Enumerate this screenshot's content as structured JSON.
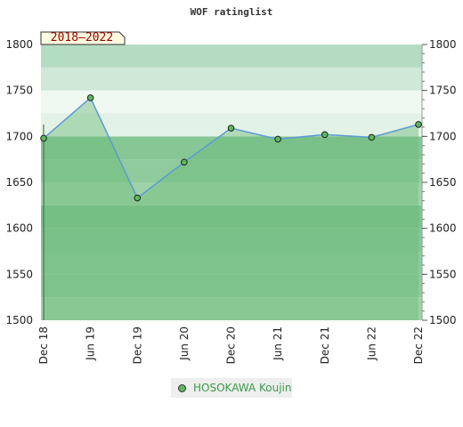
{
  "chart_data": {
    "type": "area",
    "title": "WOF ratinglist",
    "badge": "2018–2022",
    "categories": [
      "Dec 18",
      "Jun 19",
      "Dec 19",
      "Jun 20",
      "Dec 20",
      "Jun 21",
      "Dec 21",
      "Jun 22",
      "Dec 22"
    ],
    "series": [
      {
        "name": "HOSOKAWA Koujin",
        "values": [
          1698,
          1742,
          1633,
          1672,
          1709,
          1697,
          1702,
          1699,
          1713
        ]
      }
    ],
    "ylim": [
      1500,
      1800
    ],
    "yticks": [
      1500,
      1550,
      1600,
      1650,
      1700,
      1750,
      1800
    ],
    "y_axes": "left-and-right",
    "grid": true,
    "legend": "bottom-center",
    "colors": {
      "line": "#5b9bd5",
      "marker": "#5cb85c",
      "fill": "#6dba7a",
      "band_dark": "#7fc491",
      "band_light": "#eef8f0"
    }
  }
}
